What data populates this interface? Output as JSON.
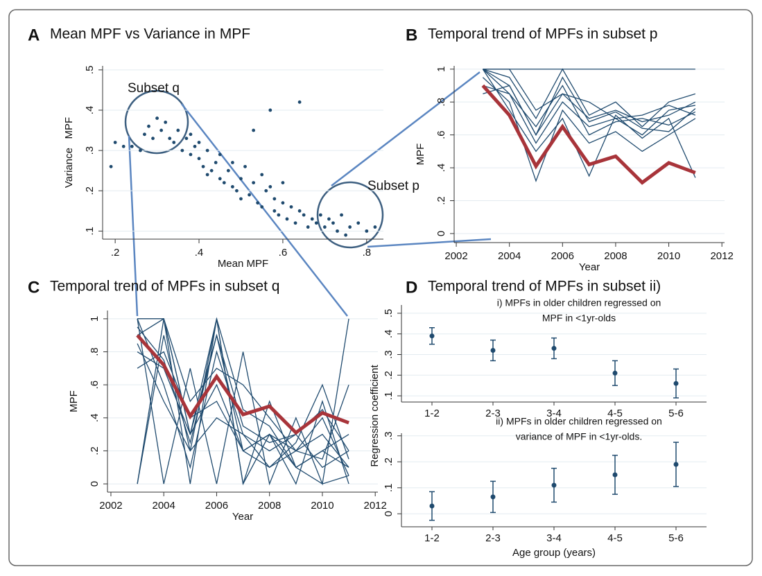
{
  "chart_data": [
    {
      "type": "scatter",
      "panel": "A",
      "title": "Mean MPF vs Variance in MPF",
      "xlabel": "Mean MPF",
      "ylabel": "Variance   MPF",
      "annotations": [
        "Subset q",
        "Subset p"
      ],
      "color": "#1f4a6e",
      "grid": true,
      "xlim": [
        0.17,
        0.84
      ],
      "ylim": [
        0.08,
        0.51
      ],
      "xticks": [
        {
          "value": 0.2,
          "label": ".2"
        },
        {
          "value": 0.4,
          "label": ".4"
        },
        {
          "value": 0.6,
          "label": ".6"
        },
        {
          "value": 0.8,
          "label": ".8"
        }
      ],
      "yticks": [
        {
          "value": 0.1,
          "label": ".1"
        },
        {
          "value": 0.2,
          "label": ".2"
        },
        {
          "value": 0.3,
          "label": ".3"
        },
        {
          "value": 0.4,
          "label": ".4"
        },
        {
          "value": 0.5,
          "label": ".5"
        }
      ],
      "x": [
        0.19,
        0.2,
        0.22,
        0.24,
        0.26,
        0.27,
        0.28,
        0.29,
        0.3,
        0.31,
        0.32,
        0.33,
        0.34,
        0.35,
        0.36,
        0.37,
        0.38,
        0.38,
        0.39,
        0.4,
        0.4,
        0.41,
        0.42,
        0.42,
        0.43,
        0.44,
        0.45,
        0.45,
        0.46,
        0.47,
        0.48,
        0.48,
        0.49,
        0.5,
        0.5,
        0.51,
        0.52,
        0.53,
        0.54,
        0.55,
        0.55,
        0.56,
        0.57,
        0.58,
        0.58,
        0.59,
        0.6,
        0.6,
        0.61,
        0.62,
        0.63,
        0.64,
        0.65,
        0.66,
        0.67,
        0.68,
        0.69,
        0.7,
        0.71,
        0.72,
        0.73,
        0.74,
        0.75,
        0.76,
        0.78,
        0.8,
        0.82,
        0.64,
        0.57,
        0.53
      ],
      "values": [
        0.26,
        0.32,
        0.31,
        0.31,
        0.3,
        0.34,
        0.36,
        0.33,
        0.38,
        0.35,
        0.37,
        0.33,
        0.32,
        0.35,
        0.3,
        0.33,
        0.34,
        0.29,
        0.31,
        0.28,
        0.32,
        0.26,
        0.3,
        0.24,
        0.25,
        0.27,
        0.23,
        0.29,
        0.22,
        0.25,
        0.21,
        0.27,
        0.2,
        0.23,
        0.18,
        0.26,
        0.19,
        0.22,
        0.17,
        0.24,
        0.16,
        0.2,
        0.21,
        0.15,
        0.18,
        0.14,
        0.17,
        0.22,
        0.13,
        0.16,
        0.12,
        0.15,
        0.14,
        0.11,
        0.13,
        0.12,
        0.14,
        0.11,
        0.13,
        0.12,
        0.1,
        0.14,
        0.09,
        0.11,
        0.12,
        0.1,
        0.11,
        0.42,
        0.4,
        0.35
      ]
    },
    {
      "type": "line",
      "panel": "B",
      "title": "Temporal trend of MPFs in subset p",
      "xlabel": "Year",
      "ylabel": "MPF",
      "grid": true,
      "xlim": [
        2001.92,
        2012.1
      ],
      "ylim": [
        -0.055,
        1.02
      ],
      "xticks": [
        2002,
        2004,
        2006,
        2008,
        2010,
        2012
      ],
      "yticks": [
        0,
        {
          "value": 0.2,
          "label": ".2"
        },
        {
          "value": 0.4,
          "label": ".4"
        },
        {
          "value": 0.6,
          "label": ".6"
        },
        {
          "value": 0.8,
          "label": ".8"
        },
        1
      ],
      "x": [
        2003,
        2004,
        2005,
        2006,
        2007,
        2008,
        2009,
        2010,
        2011
      ],
      "series": [
        {
          "color": "#1f4a6e",
          "values": [
            1,
            1,
            1,
            1,
            1,
            1,
            1,
            1,
            1
          ]
        },
        {
          "color": "#1f4a6e",
          "values": [
            1,
            0.9,
            0.6,
            0.85,
            0.7,
            0.75,
            0.68,
            0.72,
            0.8
          ]
        },
        {
          "color": "#1f4a6e",
          "values": [
            1,
            0.85,
            0.55,
            0.8,
            0.65,
            0.7,
            0.6,
            0.75,
            0.78
          ]
        },
        {
          "color": "#1f4a6e",
          "values": [
            0.95,
            0.8,
            0.32,
            0.75,
            0.55,
            0.62,
            0.5,
            0.6,
            0.7
          ]
        },
        {
          "color": "#1f4a6e",
          "values": [
            1,
            0.95,
            0.7,
            1,
            0.72,
            0.8,
            0.65,
            0.8,
            0.85
          ]
        },
        {
          "color": "#1f4a6e",
          "values": [
            0.9,
            0.85,
            0.65,
            0.9,
            0.6,
            0.68,
            0.7,
            0.66,
            0.74
          ]
        },
        {
          "color": "#1f4a6e",
          "values": [
            1,
            0.75,
            0.5,
            0.7,
            0.35,
            0.72,
            0.58,
            0.7,
            0.34
          ]
        },
        {
          "color": "#1f4a6e",
          "values": [
            0.85,
            0.9,
            0.6,
            0.95,
            0.68,
            0.74,
            0.64,
            0.62,
            0.76
          ]
        },
        {
          "color": "#1f4a6e",
          "values": [
            1,
            1,
            0.75,
            0.85,
            0.8,
            0.7,
            0.72,
            0.78,
            0.72
          ]
        },
        {
          "color": "#a8343a",
          "values": [
            0.9,
            0.72,
            0.41,
            0.65,
            0.42,
            0.47,
            0.31,
            0.43,
            0.37
          ]
        }
      ]
    },
    {
      "type": "line",
      "panel": "C",
      "title": "Temporal trend of MPFs in subset q",
      "xlabel": "Year",
      "ylabel": "MPF",
      "grid": true,
      "xlim": [
        2001.87,
        2012.1
      ],
      "ylim": [
        -0.05,
        1.05
      ],
      "xticks": [
        2002,
        2004,
        2006,
        2008,
        2010,
        2012
      ],
      "yticks": [
        0,
        {
          "value": 0.2,
          "label": ".2"
        },
        {
          "value": 0.4,
          "label": ".4"
        },
        {
          "value": 0.6,
          "label": ".6"
        },
        {
          "value": 0.8,
          "label": ".8"
        },
        1
      ],
      "x": [
        2003,
        2004,
        2005,
        2006,
        2007,
        2008,
        2009,
        2010,
        2011
      ],
      "series": [
        {
          "color": "#1f4a6e",
          "values": [
            1,
            1,
            0,
            1,
            0,
            0.3,
            0,
            0.5,
            0
          ]
        },
        {
          "color": "#1f4a6e",
          "values": [
            0,
            1,
            0.3,
            0.9,
            0.2,
            0.1,
            0.2,
            0.3,
            0.1
          ]
        },
        {
          "color": "#1f4a6e",
          "values": [
            0.8,
            0.7,
            0.3,
            0.6,
            0.2,
            0.3,
            0.1,
            0.2,
            0.1
          ]
        },
        {
          "color": "#1f4a6e",
          "values": [
            1,
            0.6,
            0.1,
            0.8,
            0.3,
            0.2,
            0.3,
            0.1,
            0.2
          ]
        },
        {
          "color": "#1f4a6e",
          "values": [
            0.9,
            1,
            0.5,
            0.7,
            0.6,
            0.4,
            0.2,
            0.4,
            0.05
          ]
        },
        {
          "color": "#1f4a6e",
          "values": [
            0,
            0.9,
            0.2,
            1,
            0,
            0.5,
            0.1,
            0.2,
            0.3
          ]
        },
        {
          "color": "#1f4a6e",
          "values": [
            0.85,
            0.5,
            0.2,
            0.4,
            0.3,
            0.1,
            0.25,
            0.6,
            0.15
          ]
        },
        {
          "color": "#1f4a6e",
          "values": [
            1,
            0,
            0.7,
            0,
            0.8,
            0,
            0.4,
            0,
            1
          ]
        },
        {
          "color": "#1f4a6e",
          "values": [
            0.7,
            0.8,
            0.4,
            0.5,
            0.2,
            0.3,
            0.2,
            0.15,
            0.6
          ]
        },
        {
          "color": "#1f4a6e",
          "values": [
            1,
            1,
            0.3,
            1,
            0.45,
            0.35,
            0.1,
            0,
            0.05
          ]
        },
        {
          "color": "#1f4a6e",
          "values": [
            0.95,
            0.75,
            0.25,
            0.9,
            0.35,
            0.25,
            0.3,
            0.45,
            0.2
          ]
        },
        {
          "color": "#a8343a",
          "values": [
            0.9,
            0.72,
            0.41,
            0.65,
            0.42,
            0.47,
            0.31,
            0.43,
            0.37
          ]
        }
      ]
    },
    {
      "type": "errorbar",
      "panel": "D",
      "title": "Temporal trend of MPFs in subset ii)",
      "ylabel": "Regression coefficient",
      "subtitle": [
        "i) MPFs in older children regressed  on",
        "MPF in <1yr-olds"
      ],
      "color": "#1f4a6e",
      "grid": true,
      "categories": [
        "1-2",
        "2-3",
        "3-4",
        "4-5",
        "5-6"
      ],
      "ylim": [
        0.07,
        0.54
      ],
      "yticks": [
        {
          "value": 0.1,
          "label": ".1"
        },
        {
          "value": 0.2,
          "label": ".2"
        },
        {
          "value": 0.3,
          "label": ".3"
        },
        {
          "value": 0.4,
          "label": ".4"
        },
        {
          "value": 0.5,
          "label": ".5"
        }
      ],
      "values": [
        0.39,
        0.32,
        0.33,
        0.21,
        0.16
      ],
      "errors": [
        0.04,
        0.05,
        0.05,
        0.06,
        0.07
      ]
    },
    {
      "type": "errorbar",
      "xlabel": "Age group (years)",
      "subtitle": [
        "ii) MPFs in older children regressed on",
        "variance of MPF in <1yr-olds."
      ],
      "color": "#1f4a6e",
      "grid": true,
      "categories": [
        "1-2",
        "2-3",
        "3-4",
        "4-5",
        "5-6"
      ],
      "ylim": [
        -0.05,
        0.31
      ],
      "yticks": [
        0,
        {
          "value": 0.1,
          "label": ".1"
        },
        {
          "value": 0.2,
          "label": ".2"
        },
        {
          "value": 0.3,
          "label": ".3"
        }
      ],
      "values": [
        0.03,
        0.065,
        0.11,
        0.15,
        0.19
      ],
      "errors": [
        0.055,
        0.06,
        0.065,
        0.075,
        0.085
      ]
    }
  ]
}
